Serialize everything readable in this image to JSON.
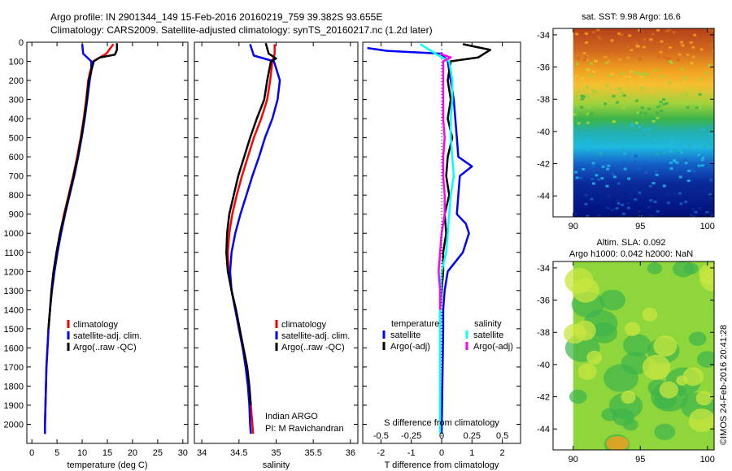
{
  "header": {
    "title_line1": "Argo profile: IN 2901344_149 15-Feb-2016 20160219_759 39.382S 93.655E",
    "title_line2": "Climatology: CARS2009. Satellite-adjusted climatology: synTS_20160217.nc (1.2d later)"
  },
  "colors": {
    "climatology": "#ff0000",
    "satellite": "#0000ff",
    "argo": "#000000",
    "sat_salinity": "#00ffff",
    "argo_salinity": "#ff00ff"
  },
  "chart_data": [
    {
      "type": "line",
      "name": "temperature-profile",
      "xlabel": "temperature (deg C)",
      "xlim": [
        -1,
        31
      ],
      "ylim": [
        2100,
        0
      ],
      "xticks": [
        "0",
        "5",
        "10",
        "15",
        "20",
        "25",
        "30"
      ],
      "yticks": [
        "0",
        "100",
        "200",
        "300",
        "400",
        "500",
        "600",
        "700",
        "800",
        "900",
        "1000",
        "1100",
        "1200",
        "1300",
        "1400",
        "1500",
        "1600",
        "1700",
        "1800",
        "1900",
        "2000"
      ],
      "legend": [
        "climatology",
        "satellite-adj. clim.",
        "Argo(..raw -QC)"
      ],
      "series": [
        {
          "name": "climatology",
          "color": "#ff0000",
          "points": [
            [
              16.2,
              10
            ],
            [
              14.8,
              60
            ],
            [
              12.2,
              100
            ],
            [
              11.6,
              150
            ],
            [
              11.2,
              200
            ],
            [
              10.8,
              300
            ],
            [
              10.3,
              400
            ],
            [
              9.7,
              500
            ],
            [
              9.0,
              600
            ],
            [
              8.2,
              700
            ],
            [
              7.3,
              800
            ],
            [
              6.4,
              900
            ],
            [
              5.6,
              1000
            ],
            [
              4.9,
              1100
            ],
            [
              4.3,
              1200
            ],
            [
              3.9,
              1300
            ],
            [
              3.6,
              1400
            ],
            [
              3.3,
              1500
            ],
            [
              3.1,
              1600
            ],
            [
              2.9,
              1700
            ],
            [
              2.8,
              1800
            ],
            [
              2.7,
              1900
            ],
            [
              2.6,
              2000
            ],
            [
              2.6,
              2050
            ]
          ]
        },
        {
          "name": "satellite-adj. clim.",
          "color": "#0000ff",
          "points": [
            [
              10.0,
              10
            ],
            [
              10.2,
              60
            ],
            [
              11.8,
              100
            ],
            [
              11.8,
              150
            ],
            [
              11.5,
              200
            ],
            [
              11.0,
              300
            ],
            [
              10.5,
              400
            ],
            [
              9.9,
              500
            ],
            [
              9.2,
              600
            ],
            [
              8.4,
              700
            ],
            [
              7.5,
              800
            ],
            [
              6.6,
              900
            ],
            [
              5.8,
              1000
            ],
            [
              5.1,
              1100
            ],
            [
              4.5,
              1200
            ],
            [
              4.0,
              1300
            ],
            [
              3.6,
              1400
            ],
            [
              3.3,
              1500
            ],
            [
              3.1,
              1600
            ],
            [
              2.9,
              1700
            ],
            [
              2.8,
              1800
            ],
            [
              2.7,
              1900
            ],
            [
              2.6,
              2000
            ],
            [
              2.6,
              2050
            ]
          ]
        },
        {
          "name": "Argo(..raw -QC)",
          "color": "#000000",
          "points": [
            [
              16.9,
              5
            ],
            [
              16.9,
              40
            ],
            [
              16.5,
              65
            ],
            [
              13.5,
              80
            ],
            [
              12.3,
              100
            ],
            [
              11.8,
              150
            ],
            [
              11.3,
              200
            ],
            [
              10.9,
              300
            ],
            [
              10.4,
              400
            ],
            [
              9.8,
              500
            ],
            [
              9.1,
              600
            ],
            [
              8.3,
              700
            ],
            [
              7.4,
              800
            ],
            [
              6.5,
              900
            ],
            [
              5.6,
              1000
            ],
            [
              4.9,
              1100
            ],
            [
              4.3,
              1200
            ],
            [
              3.9,
              1300
            ],
            [
              3.6,
              1400
            ],
            [
              3.3,
              1500
            ]
          ]
        }
      ]
    },
    {
      "type": "line",
      "name": "salinity-profile",
      "xlabel": "salinity",
      "xlim": [
        33.9,
        36.1
      ],
      "ylim": [
        2100,
        0
      ],
      "xticks": [
        "34",
        "34.5",
        "35",
        "35.5",
        "36"
      ],
      "legend": [
        "climatology",
        "satellite-adj. clim.",
        "Argo(..raw -QC)"
      ],
      "annotation": [
        "Indian ARGO",
        "PI: M Ravichandran"
      ],
      "series": [
        {
          "name": "climatology",
          "color": "#ff0000",
          "points": [
            [
              34.98,
              10
            ],
            [
              34.98,
              60
            ],
            [
              34.95,
              100
            ],
            [
              34.92,
              200
            ],
            [
              34.88,
              300
            ],
            [
              34.8,
              400
            ],
            [
              34.7,
              500
            ],
            [
              34.62,
              600
            ],
            [
              34.54,
              700
            ],
            [
              34.47,
              800
            ],
            [
              34.41,
              900
            ],
            [
              34.37,
              1000
            ],
            [
              34.35,
              1100
            ],
            [
              34.36,
              1200
            ],
            [
              34.4,
              1300
            ],
            [
              34.45,
              1400
            ],
            [
              34.5,
              1500
            ],
            [
              34.55,
              1600
            ],
            [
              34.6,
              1700
            ],
            [
              34.63,
              1800
            ],
            [
              34.66,
              1900
            ],
            [
              34.68,
              2000
            ],
            [
              34.69,
              2050
            ]
          ]
        },
        {
          "name": "satellite-adj. clim.",
          "color": "#0000ff",
          "points": [
            [
              34.65,
              10
            ],
            [
              34.7,
              70
            ],
            [
              34.97,
              100
            ],
            [
              35.05,
              200
            ],
            [
              35.02,
              300
            ],
            [
              34.95,
              400
            ],
            [
              34.85,
              500
            ],
            [
              34.77,
              600
            ],
            [
              34.68,
              700
            ],
            [
              34.6,
              800
            ],
            [
              34.52,
              900
            ],
            [
              34.45,
              1000
            ],
            [
              34.4,
              1100
            ],
            [
              34.38,
              1200
            ],
            [
              34.4,
              1300
            ],
            [
              34.45,
              1400
            ],
            [
              34.5,
              1500
            ],
            [
              34.55,
              1600
            ],
            [
              34.59,
              1700
            ],
            [
              34.62,
              1800
            ],
            [
              34.64,
              1900
            ],
            [
              34.65,
              2000
            ],
            [
              34.66,
              2050
            ]
          ]
        },
        {
          "name": "Argo(..raw -QC)",
          "color": "#000000",
          "points": [
            [
              34.86,
              5
            ],
            [
              34.9,
              60
            ],
            [
              35.0,
              85
            ],
            [
              34.93,
              100
            ],
            [
              34.88,
              200
            ],
            [
              34.84,
              300
            ],
            [
              34.74,
              400
            ],
            [
              34.65,
              500
            ],
            [
              34.57,
              600
            ],
            [
              34.49,
              700
            ],
            [
              34.43,
              800
            ],
            [
              34.37,
              900
            ],
            [
              34.34,
              1000
            ],
            [
              34.33,
              1100
            ],
            [
              34.35,
              1200
            ],
            [
              34.4,
              1300
            ],
            [
              34.46,
              1400
            ],
            [
              34.51,
              1500
            ],
            [
              34.56,
              1600
            ],
            [
              34.61,
              1700
            ],
            [
              34.64,
              1800
            ],
            [
              34.66,
              1900
            ]
          ]
        }
      ]
    },
    {
      "type": "line",
      "name": "difference-profile",
      "xlabel": "T difference from climatology",
      "xlim": [
        -2.6,
        2.6
      ],
      "ylim": [
        2100,
        0
      ],
      "xticks": [
        "-2",
        "-1",
        "0",
        "1",
        "2"
      ],
      "top_xlabel": "S difference from climatology",
      "top_xticks": [
        "-0.5",
        "-0.25",
        "0",
        "0.25",
        "0.5"
      ],
      "legend_headers": [
        "temperature",
        "salinity"
      ],
      "legend": [
        "satellite",
        "Argo(-adj)",
        "satellite",
        "Argo(-adj)"
      ],
      "series": [
        {
          "name": "temperature satellite",
          "color": "#0000ff",
          "points": [
            [
              -2.45,
              30
            ],
            [
              -1.8,
              45
            ],
            [
              0.0,
              60
            ],
            [
              0.2,
              100
            ],
            [
              0.3,
              200
            ],
            [
              0.4,
              300
            ],
            [
              0.45,
              400
            ],
            [
              0.5,
              500
            ],
            [
              0.55,
              600
            ],
            [
              1.0,
              650
            ],
            [
              0.6,
              700
            ],
            [
              0.55,
              800
            ],
            [
              0.5,
              900
            ],
            [
              0.8,
              950
            ],
            [
              0.9,
              1000
            ],
            [
              0.7,
              1100
            ],
            [
              0.2,
              1200
            ],
            [
              0.1,
              1300
            ],
            [
              0.05,
              1400
            ],
            [
              0.05,
              1500
            ],
            [
              0.0,
              2050
            ]
          ]
        },
        {
          "name": "temperature Argo(-adj)",
          "color": "#000000",
          "points": [
            [
              0.7,
              10
            ],
            [
              1.6,
              40
            ],
            [
              1.2,
              80
            ],
            [
              0.3,
              100
            ],
            [
              0.2,
              200
            ],
            [
              0.3,
              300
            ],
            [
              0.2,
              400
            ],
            [
              0.35,
              500
            ],
            [
              0.2,
              600
            ],
            [
              0.15,
              700
            ],
            [
              0.25,
              800
            ],
            [
              0.1,
              900
            ],
            [
              0.15,
              1000
            ],
            [
              0.05,
              1100
            ],
            [
              0.05,
              1200
            ],
            [
              0.0,
              1300
            ],
            [
              -0.05,
              1400
            ],
            [
              -0.05,
              1500
            ]
          ]
        },
        {
          "name": "salinity satellite",
          "color": "#00ffff",
          "points": [
            [
              -0.7,
              10
            ],
            [
              -0.2,
              60
            ],
            [
              0.25,
              100
            ],
            [
              0.35,
              200
            ],
            [
              0.35,
              300
            ],
            [
              0.3,
              400
            ],
            [
              0.3,
              500
            ],
            [
              0.35,
              600
            ],
            [
              0.4,
              700
            ],
            [
              0.3,
              800
            ],
            [
              0.25,
              900
            ],
            [
              0.2,
              1000
            ],
            [
              0.15,
              1100
            ],
            [
              0.0,
              1200
            ],
            [
              -0.05,
              1400
            ],
            [
              -0.05,
              1600
            ],
            [
              -0.05,
              1800
            ],
            [
              -0.05,
              2050
            ]
          ]
        },
        {
          "name": "salinity Argo(-adj)",
          "color": "#ff00ff",
          "points": [
            [
              -0.05,
              60
            ],
            [
              0.3,
              80
            ],
            [
              0.05,
              100
            ],
            [
              0.05,
              200
            ],
            [
              0.05,
              300
            ],
            [
              0.05,
              400
            ],
            [
              0.1,
              500
            ],
            [
              0.05,
              600
            ],
            [
              0.05,
              700
            ],
            [
              0.1,
              800
            ],
            [
              0.1,
              900
            ],
            [
              0.0,
              1000
            ],
            [
              -0.05,
              1100
            ],
            [
              -0.1,
              1200
            ],
            [
              -0.05,
              1300
            ],
            [
              -0.05,
              1400
            ]
          ]
        }
      ]
    },
    {
      "type": "heatmap",
      "name": "sst-map",
      "title": "sat. SST: 9.98 Argo: 16.6",
      "xlim": [
        88.5,
        100.5
      ],
      "ylim": [
        -45.3,
        -33.6
      ],
      "xticks": [
        "90",
        "95",
        "100"
      ],
      "yticks": [
        "-34",
        "-36",
        "-38",
        "-40",
        "-42",
        "-44"
      ]
    },
    {
      "type": "heatmap",
      "name": "sla-map",
      "title_line1": "Altim. SLA: 0.092",
      "title_line2": "Argo h1000: 0.042 h2000: NaN",
      "xlim": [
        88.5,
        100.5
      ],
      "ylim": [
        -45.3,
        -33.6
      ],
      "xticks": [
        "90",
        "95",
        "100"
      ],
      "yticks": [
        "-34",
        "-36",
        "-38",
        "-40",
        "-42",
        "-44"
      ]
    }
  ],
  "footer": {
    "stamp": "©IMOS 24-Feb-2016 20:41:28"
  }
}
